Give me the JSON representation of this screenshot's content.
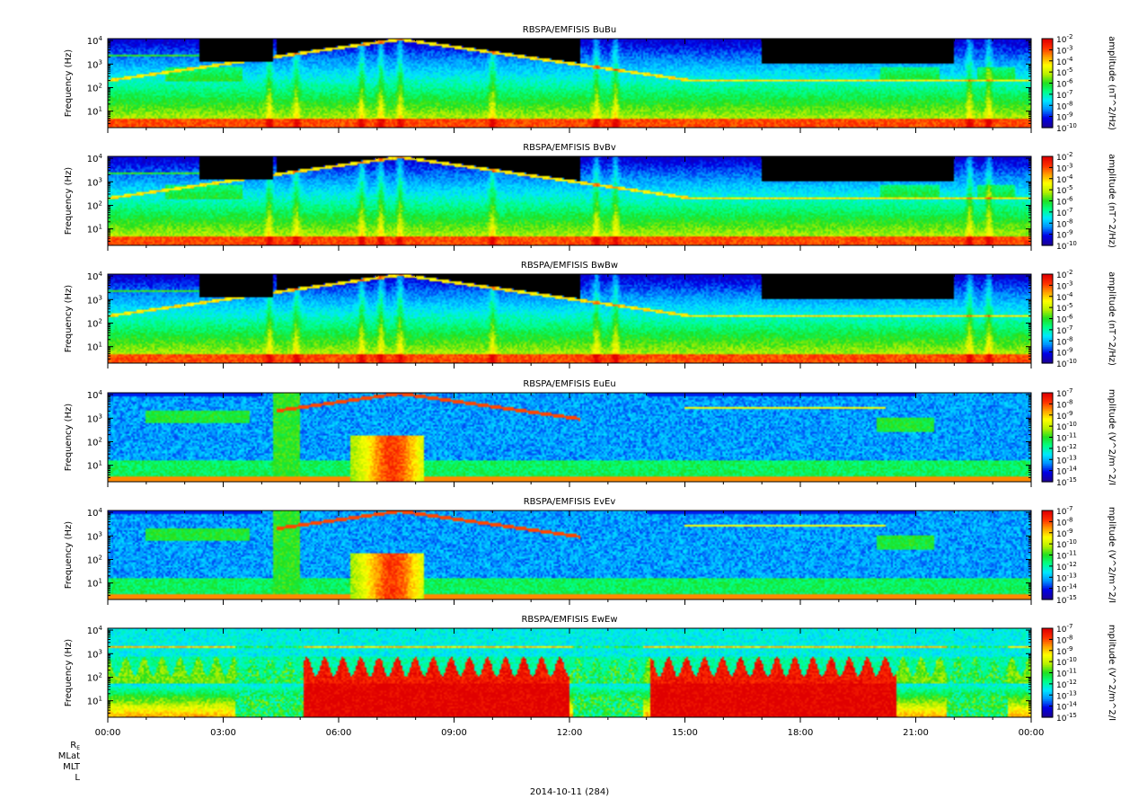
{
  "chart_data": {
    "type": "heatmap",
    "date_label": "2014-10-11 (284)",
    "x_ticks": [
      "00:00",
      "03:00",
      "06:00",
      "09:00",
      "12:00",
      "15:00",
      "18:00",
      "21:00",
      "00:00"
    ],
    "x_range_hours": [
      0,
      24
    ],
    "ephemeris_labels": [
      "R_E",
      "MLat",
      "MLT",
      "L"
    ],
    "ylim_hz": [
      2,
      12000
    ],
    "y_scale": "log",
    "y_ticks": [
      {
        "base": "10",
        "exp": "1"
      },
      {
        "base": "10",
        "exp": "2"
      },
      {
        "base": "10",
        "exp": "3"
      },
      {
        "base": "10",
        "exp": "4"
      }
    ],
    "colorbar_palette": [
      "#1a009a",
      "#0000e6",
      "#0090ff",
      "#00e8ff",
      "#00ff88",
      "#20e020",
      "#b8f000",
      "#ffff00",
      "#ffa000",
      "#ff3000",
      "#e00000"
    ],
    "panels": [
      {
        "title": "RBSPA/EMFISIS  BuBu",
        "ylabel": "Frequency (Hz)",
        "clabel": "amplitude (nT^2/Hz)",
        "clim_exp": [
          -10,
          -2
        ],
        "ctick_exps": [
          "-2",
          "-3",
          "-4",
          "-5",
          "-6",
          "-7",
          "-8",
          "-9",
          "-10"
        ],
        "field": "B",
        "hiss_band": true
      },
      {
        "title": "RBSPA/EMFISIS  BvBv",
        "ylabel": "Frequency (Hz)",
        "clabel": "amplitude (nT^2/Hz)",
        "clim_exp": [
          -10,
          -2
        ],
        "ctick_exps": [
          "-2",
          "-3",
          "-4",
          "-5",
          "-6",
          "-7",
          "-8",
          "-9",
          "-10"
        ],
        "field": "B",
        "hiss_band": true
      },
      {
        "title": "RBSPA/EMFISIS  BwBw",
        "ylabel": "Frequency (Hz)",
        "clabel": "amplitude (nT^2/Hz)",
        "clim_exp": [
          -10,
          -2
        ],
        "ctick_exps": [
          "-2",
          "-3",
          "-4",
          "-5",
          "-6",
          "-7",
          "-8",
          "-9",
          "-10"
        ],
        "field": "B",
        "hiss_band": false
      },
      {
        "title": "RBSPA/EMFISIS  EuEu",
        "ylabel": "Frequency (Hz)",
        "clabel": "mplitude (V^2/m^2/I",
        "clim_exp": [
          -15,
          -7
        ],
        "ctick_exps": [
          "-7",
          "-8",
          "-9",
          "-10",
          "-11",
          "-12",
          "-13",
          "-14",
          "-15"
        ],
        "field": "E",
        "hiss_band": false
      },
      {
        "title": "RBSPA/EMFISIS  EvEv",
        "ylabel": "Frequency (Hz)",
        "clabel": "mplitude (V^2/m^2/I",
        "clim_exp": [
          -15,
          -7
        ],
        "ctick_exps": [
          "-7",
          "-8",
          "-9",
          "-10",
          "-11",
          "-12",
          "-13",
          "-14",
          "-15"
        ],
        "field": "E",
        "hiss_band": false
      },
      {
        "title": "RBSPA/EMFISIS  EwEw",
        "ylabel": "Frequency (Hz)",
        "clabel": "mplitude (V^2/m^2/I",
        "clim_exp": [
          -15,
          -7
        ],
        "ctick_exps": [
          "-7",
          "-8",
          "-9",
          "-10",
          "-11",
          "-12",
          "-13",
          "-14",
          "-15"
        ],
        "field": "Ew",
        "hiss_band": false
      }
    ]
  }
}
